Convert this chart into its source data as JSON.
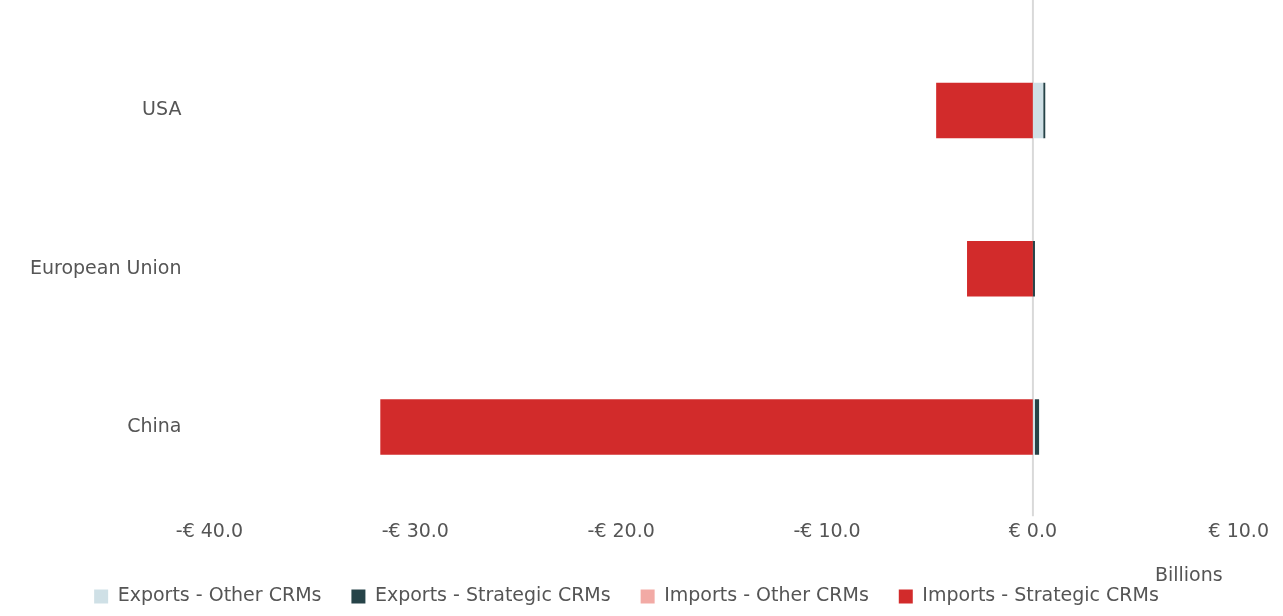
{
  "chart_data": {
    "type": "bar",
    "orientation": "horizontal",
    "stacked": true,
    "categories": [
      "USA",
      "European Union",
      "China"
    ],
    "series": [
      {
        "name": "Exports - Other CRMs",
        "color": "#cfe0e6",
        "values": [
          0.5,
          0,
          0.1
        ]
      },
      {
        "name": "Exports - Strategic CRMs",
        "color": "#264348",
        "values": [
          0.1,
          0.1,
          0.2
        ]
      },
      {
        "name": "Imports - Other CRMs",
        "color": "#f2aaa5",
        "values": [
          0,
          0,
          0
        ]
      },
      {
        "name": "Imports - Strategic CRMs",
        "color": "#d22b2b",
        "values": [
          -4.7,
          -3.2,
          -31.7
        ]
      }
    ],
    "xlim": [
      -40,
      10
    ],
    "xticks": [
      {
        "value": -40,
        "label": "-€ 40.0"
      },
      {
        "value": -30,
        "label": "-€ 30.0"
      },
      {
        "value": -20,
        "label": "-€ 20.0"
      },
      {
        "value": -10,
        "label": "-€ 10.0"
      },
      {
        "value": 0,
        "label": "€ 0.0"
      },
      {
        "value": 10,
        "label": "€ 10.0"
      }
    ],
    "xlabel": "Billions",
    "ref_lines": [
      {
        "axis": "x",
        "value": 0,
        "color": "#d9d9d9"
      }
    ],
    "grid": false,
    "legend": "bottom"
  }
}
